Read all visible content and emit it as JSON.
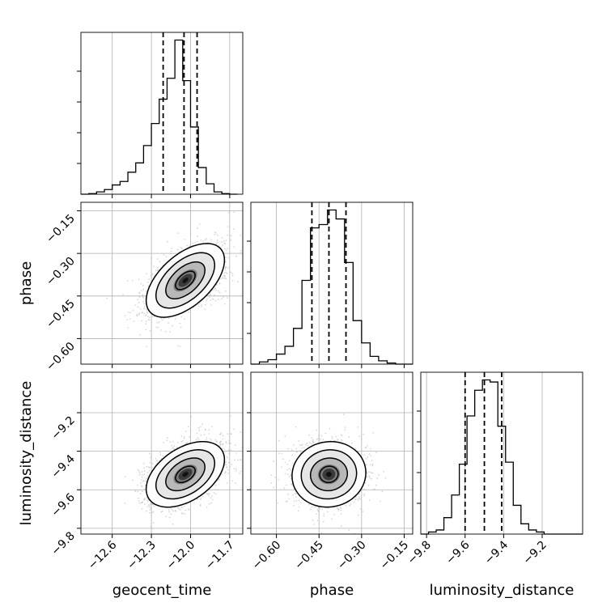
{
  "chart_data": {
    "type": "corner",
    "parameters": [
      "geocent_time",
      "phase",
      "luminosity_distance"
    ],
    "ranges": {
      "geocent_time": [
        -12.84,
        -11.6
      ],
      "phase": [
        -0.69,
        -0.12
      ],
      "luminosity_distance": [
        -9.83,
        -8.99
      ]
    },
    "ticks": {
      "geocent_time": [
        -12.6,
        -12.3,
        -12.0,
        -11.7
      ],
      "phase": [
        -0.6,
        -0.45,
        -0.3,
        -0.15
      ],
      "luminosity_distance": [
        -9.8,
        -9.6,
        -9.4,
        -9.2
      ]
    },
    "tick_labels": {
      "geocent_time": [
        "−12.6",
        "−12.3",
        "−12.0",
        "−11.7"
      ],
      "phase": [
        "−0.60",
        "−0.45",
        "−0.30",
        "−0.15"
      ],
      "luminosity_distance": [
        "−9.8",
        "−9.6",
        "−9.4",
        "−9.2"
      ]
    },
    "axis_labels": {
      "geocent_time": "geocent_time",
      "phase": "phase",
      "luminosity_distance": "luminosity_distance"
    },
    "quantiles": {
      "geocent_time": [
        -12.21,
        -12.05,
        -11.95
      ],
      "phase": [
        -0.475,
        -0.415,
        -0.355
      ],
      "luminosity_distance": [
        -9.6,
        -9.5,
        -9.41
      ]
    },
    "histograms": {
      "geocent_time": {
        "edges": [
          -12.84,
          -12.78,
          -12.72,
          -12.66,
          -12.6,
          -12.54,
          -12.48,
          -12.42,
          -12.36,
          -12.3,
          -12.24,
          -12.18,
          -12.12,
          -12.06,
          -12.0,
          -11.94,
          -11.88,
          -11.82,
          -11.76,
          -11.7,
          -11.64
        ],
        "counts": [
          0,
          0.5,
          2,
          4,
          8,
          11,
          19,
          27,
          42,
          61,
          82,
          100,
          133,
          98,
          58,
          23,
          9,
          2,
          0.5,
          0
        ]
      },
      "phase": {
        "edges": [
          -0.69,
          -0.66,
          -0.63,
          -0.6,
          -0.57,
          -0.54,
          -0.51,
          -0.48,
          -0.45,
          -0.42,
          -0.39,
          -0.36,
          -0.33,
          -0.3,
          -0.27,
          -0.24,
          -0.21,
          -0.18,
          -0.15,
          -0.12
        ],
        "counts": [
          0,
          2,
          4,
          9,
          16,
          32,
          75,
          122,
          125,
          138,
          130,
          91,
          39,
          19,
          7,
          3,
          1,
          0,
          0
        ]
      },
      "luminosity_distance": {
        "edges": [
          -9.83,
          -9.79,
          -9.75,
          -9.71,
          -9.67,
          -9.63,
          -9.59,
          -9.55,
          -9.51,
          -9.47,
          -9.43,
          -9.39,
          -9.35,
          -9.31,
          -9.27,
          -9.23,
          -9.19,
          -9.15,
          -9.11,
          -9.07,
          -9.03,
          -8.99
        ],
        "counts": [
          0,
          2,
          4,
          16,
          38,
          68,
          115,
          140,
          150,
          148,
          105,
          70,
          28,
          10,
          4,
          2,
          0,
          0,
          0,
          0,
          0
        ]
      }
    },
    "density_2d": {
      "phase_vs_geocent_time": {
        "center": [
          -12.04,
          -0.395
        ],
        "sigma": [
          0.15,
          0.065
        ],
        "rho": 0.55
      },
      "luminosity_distance_vs_geocent_time": {
        "center": [
          -12.04,
          -9.52
        ],
        "sigma": [
          0.15,
          0.085
        ],
        "rho": 0.45
      },
      "luminosity_distance_vs_phase": {
        "center": [
          -0.415,
          -9.52
        ],
        "sigma": [
          0.065,
          0.085
        ],
        "rho": 0.05
      }
    },
    "contour_levels_sigma": [
      0.5,
      1.0,
      1.5,
      2.0
    ],
    "grid": true,
    "colors": {
      "line": "#000000",
      "points": "#bdbdbd",
      "grid": "#b0b0b0"
    }
  }
}
